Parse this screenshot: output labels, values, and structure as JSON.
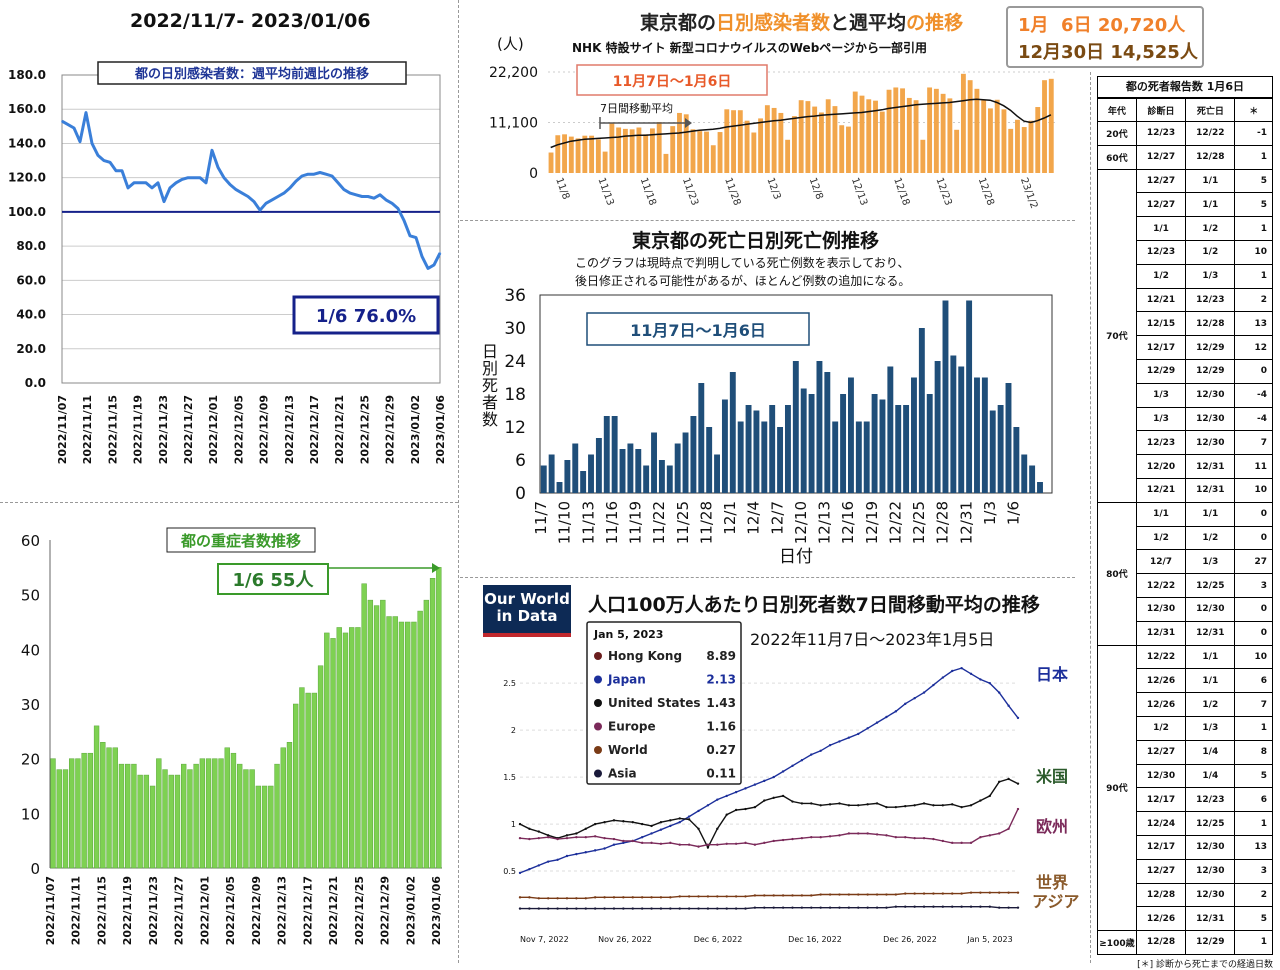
{
  "panel1": {
    "title": "2022/11/7- 2023/01/06",
    "chart_data": {
      "type": "line",
      "title": "都の日別感染者数：週平均前週比の推移",
      "ylim": [
        0,
        180
      ],
      "yticks": [
        "0.0",
        "20.0",
        "40.0",
        "60.0",
        "80.0",
        "100.0",
        "120.0",
        "140.0",
        "160.0",
        "180.0"
      ],
      "xticks": [
        "2022/11/07",
        "2022/11/11",
        "2022/11/15",
        "2022/11/19",
        "2022/11/23",
        "2022/11/27",
        "2022/12/01",
        "2022/12/05",
        "2022/12/09",
        "2022/12/13",
        "2022/12/17",
        "2022/12/21",
        "2022/12/25",
        "2022/12/29",
        "2023/01/02",
        "2023/01/06"
      ],
      "reference_line": 100,
      "values": [
        153,
        151,
        149,
        141,
        158,
        140,
        133,
        130,
        129,
        124,
        124,
        114,
        117,
        117,
        117,
        114,
        117,
        106,
        114,
        117,
        119,
        120,
        120,
        120,
        117,
        136,
        126,
        120,
        116,
        113,
        111,
        109,
        106,
        101,
        105,
        107,
        109,
        111,
        114,
        118,
        121,
        122,
        122,
        123,
        122,
        121,
        117,
        113,
        111,
        110,
        109,
        109,
        108,
        110,
        107,
        105,
        102,
        95,
        86,
        85,
        74,
        67,
        69,
        76
      ],
      "callout": "1/6  76.0%"
    }
  },
  "panel2": {
    "title_part1": "東京都の",
    "title_part2": "日別感染者数",
    "title_part3": "と",
    "title_part4": "週平均",
    "title_part5": "の推移",
    "subtitle": "NHK 特設サイト 新型コロナウイルスのWebページから一部引用",
    "ylabel": "(人)",
    "box_line1": "1月  6日 20,720人",
    "box_line2": "12月30日 14,525人",
    "chart_data": {
      "type": "bar",
      "yticks": [
        "0",
        "11,100",
        "22,200"
      ],
      "ylim": [
        0,
        22200
      ],
      "xticks": [
        "11/8",
        "11/13",
        "11/18",
        "11/23",
        "11/28",
        "12/3",
        "12/8",
        "12/13",
        "12/18",
        "12/23",
        "12/28",
        "23/1/2"
      ],
      "period_label": "11月7日〜1月6日",
      "moving_avg_label": "7日間移動平均",
      "values": [
        4500,
        8300,
        8500,
        8000,
        7600,
        8200,
        8200,
        7400,
        4700,
        10900,
        10000,
        9700,
        9600,
        10000,
        8500,
        9800,
        11200,
        4200,
        10300,
        13200,
        12900,
        9600,
        9200,
        9100,
        6100,
        9000,
        14000,
        13800,
        13800,
        11500,
        8900,
        12000,
        14900,
        14300,
        13200,
        7300,
        12500,
        16000,
        15800,
        14600,
        13300,
        16200,
        14700,
        10500,
        10200,
        17900,
        17000,
        16200,
        15900,
        13500,
        18300,
        18800,
        18600,
        16500,
        16000,
        7300,
        18800,
        18500,
        17400,
        16400,
        9500,
        21800,
        20400,
        18500,
        16000,
        14200,
        16100,
        14000,
        9700,
        11700,
        10100,
        11500,
        14500,
        20400,
        20700
      ],
      "moving_avg": [
        5600,
        6200,
        6600,
        7000,
        7200,
        7400,
        7500,
        7600,
        7700,
        7800,
        7900,
        8100,
        8200,
        8300,
        8300,
        8400,
        8500,
        8600,
        8700,
        8800,
        9000,
        9200,
        9400,
        9500,
        9600,
        9800,
        10100,
        10300,
        10500,
        10700,
        10900,
        11100,
        11300,
        11500,
        11600,
        11800,
        12000,
        12200,
        12400,
        12500,
        12700,
        12800,
        12900,
        13000,
        13100,
        13200,
        13300,
        13500,
        13700,
        13900,
        14200,
        14400,
        14600,
        14800,
        15000,
        15100,
        15200,
        15300,
        15400,
        15500,
        15700,
        15900,
        16100,
        16200,
        16100,
        16000,
        15500,
        14800,
        13800,
        12500,
        11400,
        11100,
        11500,
        12100,
        12800
      ]
    }
  },
  "panel3": {
    "chart_data": {
      "type": "bar",
      "title": "東京都の死亡日別死亡例推移",
      "note_line1": "このグラフは現時点で判明している死亡例数を表示しており、",
      "note_line2": "後日修正される可能性があるが、ほとんど例数の追加になる。",
      "ylabel": "日別死者数",
      "xlabel": "日付",
      "ylim": [
        0,
        36
      ],
      "yticks": [
        "0",
        "6",
        "12",
        "18",
        "24",
        "30",
        "36"
      ],
      "xticks": [
        "11/7",
        "11/10",
        "11/13",
        "11/16",
        "11/19",
        "11/22",
        "11/25",
        "11/28",
        "12/1",
        "12/4",
        "12/7",
        "12/10",
        "12/13",
        "12/16",
        "12/19",
        "12/22",
        "12/25",
        "12/28",
        "12/31",
        "1/3",
        "1/6"
      ],
      "period_label": "11月7日〜1月6日",
      "values": [
        5,
        7,
        2,
        6,
        9,
        4,
        7,
        10,
        14,
        14,
        8,
        9,
        8,
        5,
        11,
        6,
        5,
        9,
        11,
        14,
        20,
        12,
        7,
        17,
        22,
        13,
        16,
        15,
        13,
        16,
        12,
        16,
        24,
        19,
        18,
        24,
        22,
        13,
        18,
        21,
        13,
        13,
        18,
        17,
        23,
        16,
        16,
        21,
        30,
        18,
        24,
        35,
        25,
        23,
        35,
        21,
        21,
        15,
        16,
        20,
        12,
        7,
        5,
        2,
        0
      ]
    }
  },
  "panel4": {
    "chart_data": {
      "type": "line",
      "title": "人口100万人あたり日別死者数7日間移動平均の推移",
      "logo_line1": "Our World",
      "logo_line2": "in Data",
      "subtitle": "2022年11月7日〜2023年1月5日",
      "tooltip_date": "Jan 5, 2023",
      "yticks": [
        "0.5",
        "1",
        "1.5",
        "2",
        "2.5"
      ],
      "ylim": [
        0,
        2.8
      ],
      "xticks": [
        "Nov 7, 2022",
        "Nov 26, 2022",
        "Dec 6, 2022",
        "Dec 16, 2022",
        "Dec 26, 2022",
        "Jan 5, 2023"
      ],
      "series": [
        {
          "name": "Hong Kong",
          "last": "8.89",
          "color": "#6b1e1e"
        },
        {
          "name": "Japan",
          "last": "2.13",
          "color": "#1c2f9b",
          "values": [
            0.48,
            0.52,
            0.56,
            0.6,
            0.62,
            0.66,
            0.68,
            0.7,
            0.72,
            0.74,
            0.78,
            0.8,
            0.82,
            0.86,
            0.9,
            0.94,
            0.98,
            1.02,
            1.08,
            1.14,
            1.2,
            1.26,
            1.3,
            1.34,
            1.38,
            1.42,
            1.46,
            1.5,
            1.56,
            1.62,
            1.68,
            1.74,
            1.78,
            1.84,
            1.88,
            1.92,
            1.96,
            2.02,
            2.08,
            2.14,
            2.2,
            2.28,
            2.34,
            2.4,
            2.48,
            2.56,
            2.63,
            2.66,
            2.6,
            2.54,
            2.5,
            2.4,
            2.26,
            2.13
          ]
        },
        {
          "name": "United States",
          "last": "1.43",
          "color": "#111111",
          "values": [
            1.0,
            0.95,
            0.92,
            0.88,
            0.85,
            0.88,
            0.9,
            0.95,
            1.0,
            1.02,
            1.04,
            1.03,
            1.02,
            1.0,
            0.98,
            1.02,
            1.04,
            1.06,
            1.05,
            0.95,
            0.75,
            0.95,
            1.1,
            1.15,
            1.16,
            1.18,
            1.25,
            1.28,
            1.3,
            1.24,
            1.22,
            1.22,
            1.2,
            1.21,
            1.22,
            1.2,
            1.2,
            1.21,
            1.22,
            1.18,
            1.18,
            1.19,
            1.2,
            1.22,
            1.2,
            1.2,
            1.21,
            1.18,
            1.2,
            1.25,
            1.3,
            1.45,
            1.48,
            1.43
          ]
        },
        {
          "name": "Europe",
          "last": "1.16",
          "color": "#7b2a5a",
          "values": [
            0.85,
            0.84,
            0.85,
            0.86,
            0.84,
            0.85,
            0.86,
            0.86,
            0.87,
            0.85,
            0.84,
            0.82,
            0.82,
            0.8,
            0.8,
            0.79,
            0.8,
            0.78,
            0.78,
            0.76,
            0.78,
            0.78,
            0.79,
            0.79,
            0.8,
            0.78,
            0.8,
            0.82,
            0.83,
            0.84,
            0.85,
            0.86,
            0.86,
            0.87,
            0.88,
            0.9,
            0.9,
            0.9,
            0.89,
            0.88,
            0.86,
            0.86,
            0.85,
            0.85,
            0.84,
            0.82,
            0.8,
            0.8,
            0.8,
            0.86,
            0.88,
            0.9,
            0.95,
            1.16
          ]
        },
        {
          "name": "World",
          "last": "0.27",
          "color": "#7a3b16",
          "values": [
            0.22,
            0.22,
            0.21,
            0.21,
            0.21,
            0.21,
            0.21,
            0.21,
            0.22,
            0.22,
            0.22,
            0.22,
            0.22,
            0.22,
            0.22,
            0.22,
            0.22,
            0.23,
            0.23,
            0.23,
            0.23,
            0.23,
            0.23,
            0.23,
            0.23,
            0.24,
            0.24,
            0.24,
            0.24,
            0.24,
            0.24,
            0.24,
            0.25,
            0.25,
            0.25,
            0.25,
            0.25,
            0.25,
            0.25,
            0.25,
            0.25,
            0.26,
            0.26,
            0.26,
            0.26,
            0.26,
            0.26,
            0.26,
            0.27,
            0.27,
            0.27,
            0.27,
            0.27,
            0.27
          ]
        },
        {
          "name": "Asia",
          "last": "0.11",
          "color": "#1a1a3a",
          "values": [
            0.1,
            0.1,
            0.1,
            0.1,
            0.1,
            0.1,
            0.1,
            0.1,
            0.1,
            0.1,
            0.1,
            0.1,
            0.1,
            0.1,
            0.1,
            0.1,
            0.1,
            0.1,
            0.1,
            0.1,
            0.1,
            0.1,
            0.1,
            0.1,
            0.1,
            0.11,
            0.11,
            0.11,
            0.11,
            0.11,
            0.11,
            0.11,
            0.11,
            0.11,
            0.11,
            0.11,
            0.11,
            0.11,
            0.11,
            0.11,
            0.12,
            0.12,
            0.12,
            0.12,
            0.12,
            0.12,
            0.12,
            0.12,
            0.12,
            0.12,
            0.12,
            0.11,
            0.11,
            0.11
          ]
        }
      ],
      "side_labels": [
        "日本",
        "米国",
        "欧州",
        "世界",
        "アジア"
      ]
    }
  },
  "panel5": {
    "chart_data": {
      "type": "bar",
      "title": "都の重症者数推移",
      "ylim": [
        0,
        60
      ],
      "yticks": [
        "0",
        "10",
        "20",
        "30",
        "40",
        "50",
        "60"
      ],
      "xticks": [
        "2022/11/07",
        "2022/11/11",
        "2022/11/15",
        "2022/11/19",
        "2022/11/23",
        "2022/11/27",
        "2022/12/01",
        "2022/12/05",
        "2022/12/09",
        "2022/12/13",
        "2022/12/17",
        "2022/12/21",
        "2022/12/25",
        "2022/12/29",
        "2023/01/02",
        "2023/01/06"
      ],
      "callout": "1/6  55人",
      "values": [
        20,
        18,
        18,
        20,
        20,
        21,
        21,
        26,
        23,
        22,
        22,
        19,
        19,
        19,
        17,
        17,
        15,
        20,
        18,
        17,
        17,
        19,
        18,
        19,
        20,
        20,
        20,
        20,
        22,
        21,
        19,
        18,
        18,
        15,
        15,
        15,
        19,
        22,
        23,
        30,
        33,
        32,
        32,
        37,
        43,
        42,
        44,
        43,
        44,
        44,
        52,
        49,
        48,
        49,
        46,
        46,
        45,
        45,
        45,
        47,
        49,
        53,
        55
      ]
    }
  },
  "table": {
    "title": "都の死者報告数 1月6日",
    "headers": [
      "年代",
      "診断日",
      "死亡日",
      "＊"
    ],
    "rows": [
      [
        "20代",
        "12/23",
        "12/22",
        "-1"
      ],
      [
        "60代",
        "12/27",
        "12/28",
        "1"
      ],
      [
        "70代",
        "12/27",
        "1/1",
        "5"
      ],
      [
        "",
        "12/27",
        "1/1",
        "5"
      ],
      [
        "",
        "1/1",
        "1/2",
        "1"
      ],
      [
        "",
        "12/23",
        "1/2",
        "10"
      ],
      [
        "",
        "1/2",
        "1/3",
        "1"
      ],
      [
        "",
        "12/21",
        "12/23",
        "2"
      ],
      [
        "",
        "12/15",
        "12/28",
        "13"
      ],
      [
        "",
        "12/17",
        "12/29",
        "12"
      ],
      [
        "",
        "12/29",
        "12/29",
        "0"
      ],
      [
        "",
        "1/3",
        "12/30",
        "-4"
      ],
      [
        "",
        "1/3",
        "12/30",
        "-4"
      ],
      [
        "",
        "12/23",
        "12/30",
        "7"
      ],
      [
        "",
        "12/20",
        "12/31",
        "11"
      ],
      [
        "",
        "12/21",
        "12/31",
        "10"
      ],
      [
        "80代",
        "1/1",
        "1/1",
        "0"
      ],
      [
        "",
        "1/2",
        "1/2",
        "0"
      ],
      [
        "",
        "12/7",
        "1/3",
        "27"
      ],
      [
        "",
        "12/22",
        "12/25",
        "3"
      ],
      [
        "",
        "12/30",
        "12/30",
        "0"
      ],
      [
        "",
        "12/31",
        "12/31",
        "0"
      ],
      [
        "90代",
        "12/22",
        "1/1",
        "10"
      ],
      [
        "",
        "12/26",
        "1/1",
        "6"
      ],
      [
        "",
        "12/26",
        "1/2",
        "7"
      ],
      [
        "",
        "1/2",
        "1/3",
        "1"
      ],
      [
        "",
        "12/27",
        "1/4",
        "8"
      ],
      [
        "",
        "12/30",
        "1/4",
        "5"
      ],
      [
        "",
        "12/17",
        "12/23",
        "6"
      ],
      [
        "",
        "12/24",
        "12/25",
        "1"
      ],
      [
        "",
        "12/17",
        "12/30",
        "13"
      ],
      [
        "",
        "12/27",
        "12/30",
        "3"
      ],
      [
        "",
        "12/28",
        "12/30",
        "2"
      ],
      [
        "",
        "12/26",
        "12/31",
        "5"
      ],
      [
        "≥100歳",
        "12/28",
        "12/29",
        "1"
      ]
    ],
    "footnote": "[＊] 診断から死亡までの経過日数"
  }
}
